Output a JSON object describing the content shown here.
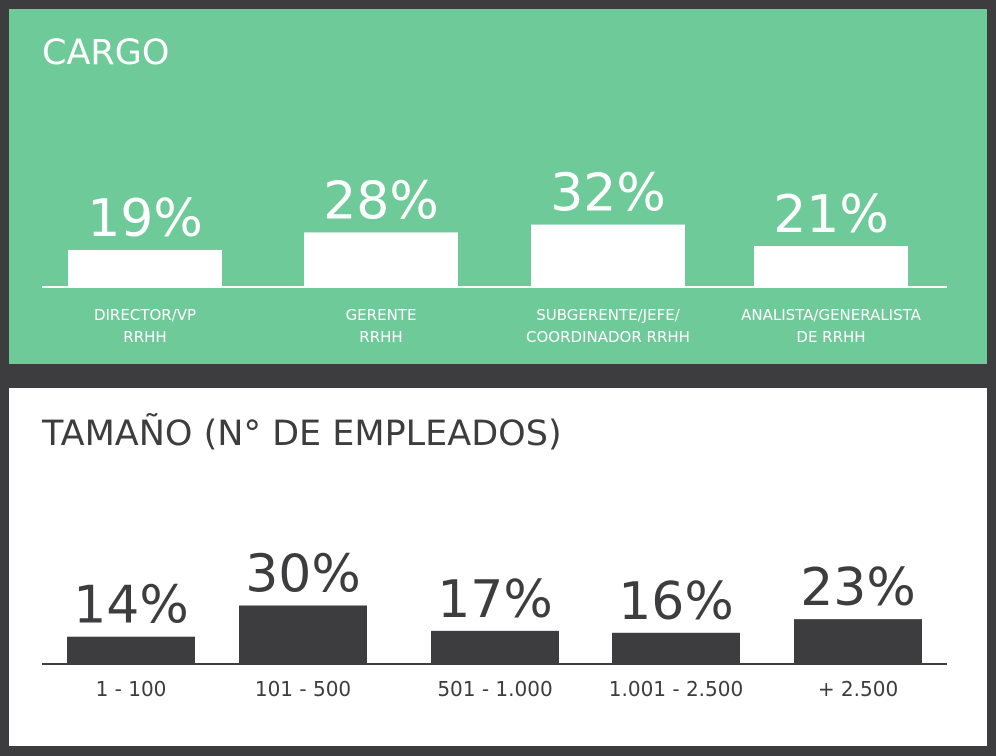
{
  "chart_data": [
    {
      "type": "bar",
      "title": "CARGO",
      "categories": [
        "DIRECTOR/VP\nRRHH",
        "GERENTE\nRRHH",
        "SUBGERENTE/JEFE/\nCOORDINADOR RRHH",
        "ANALISTA/GENERALISTA\nDE RRHH"
      ],
      "values": [
        19,
        28,
        32,
        21
      ],
      "value_labels": [
        "19%",
        "28%",
        "32%",
        "21%"
      ],
      "ylim": [
        0,
        100
      ],
      "colors": {
        "background": "#6fca99",
        "bar": "#ffffff",
        "text": "#ffffff"
      }
    },
    {
      "type": "bar",
      "title": "TAMAÑO (N° DE EMPLEADOS)",
      "categories": [
        "1 - 100",
        "101 - 500",
        "501 - 1.000",
        "1.001 - 2.500",
        "+ 2.500"
      ],
      "values": [
        14,
        30,
        17,
        16,
        23
      ],
      "value_labels": [
        "14%",
        "30%",
        "17%",
        "16%",
        "23%"
      ],
      "ylim": [
        0,
        100
      ],
      "colors": {
        "background": "#ffffff",
        "bar": "#3d3d3f",
        "text": "#3d3d3f"
      }
    }
  ]
}
